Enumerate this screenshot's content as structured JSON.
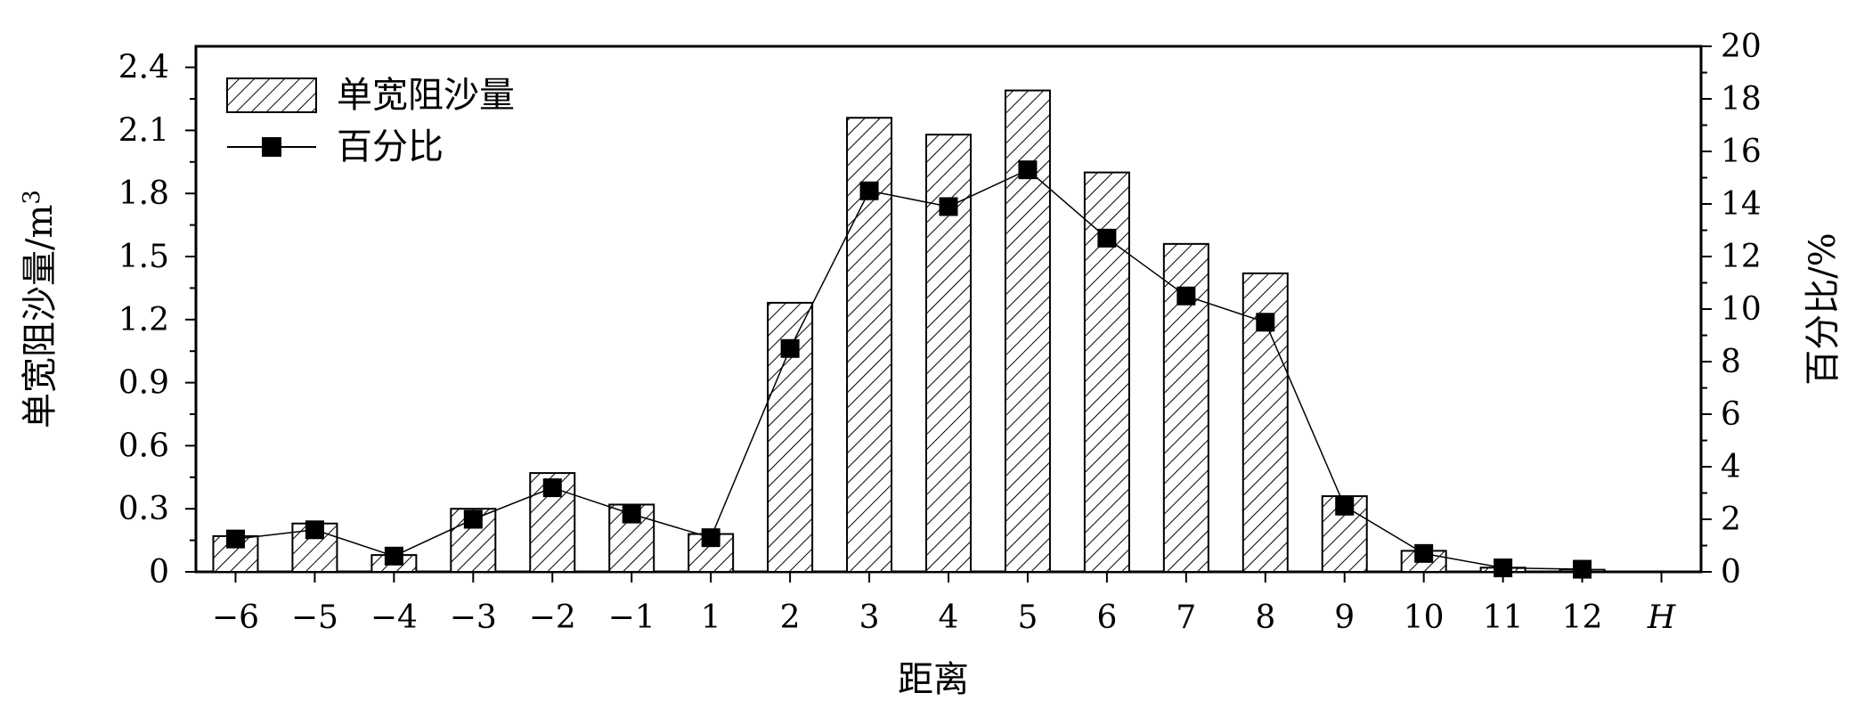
{
  "chart_data": {
    "type": "bar",
    "xlabel": "距离",
    "ylabel": "单宽阻沙量/m",
    "ylabel_sup": "3",
    "y2label": "百分比/%",
    "categories": [
      "-6",
      "-5",
      "-4",
      "-3",
      "-2",
      "-1",
      "1",
      "2",
      "3",
      "4",
      "5",
      "6",
      "7",
      "8",
      "9",
      "10",
      "11",
      "12"
    ],
    "x_tick_labels": [
      "−6",
      "−5",
      "−4",
      "−3",
      "−2",
      "−1",
      "1",
      "2",
      "3",
      "4",
      "5",
      "6",
      "7",
      "8",
      "9",
      "10",
      "11",
      "12",
      "H"
    ],
    "ylim": [
      0,
      2.5
    ],
    "yticks": [
      0,
      0.3,
      0.6,
      0.9,
      1.2,
      1.5,
      1.8,
      2.1,
      2.4
    ],
    "ytick_labels": [
      "0",
      "0.3",
      "0.6",
      "0.9",
      "1.2",
      "1.5",
      "1.8",
      "2.1",
      "2.4"
    ],
    "y2lim": [
      0,
      20
    ],
    "y2ticks": [
      0,
      2,
      4,
      6,
      8,
      10,
      12,
      14,
      16,
      18,
      20
    ],
    "y2tick_labels": [
      "0",
      "2",
      "4",
      "6",
      "8",
      "10",
      "12",
      "14",
      "16",
      "18",
      "20"
    ],
    "series": [
      {
        "name": "单宽阻沙量",
        "type": "bar",
        "axis": "left",
        "values": [
          0.17,
          0.23,
          0.08,
          0.3,
          0.47,
          0.32,
          0.18,
          1.28,
          2.16,
          2.08,
          2.29,
          1.9,
          1.56,
          1.42,
          0.36,
          0.1,
          0.02,
          0.01
        ]
      },
      {
        "name": "百分比",
        "type": "line",
        "axis": "right",
        "marker": "square",
        "values": [
          1.25,
          1.6,
          0.6,
          2.0,
          3.2,
          2.2,
          1.3,
          8.5,
          14.5,
          13.9,
          15.3,
          12.7,
          10.5,
          9.5,
          2.5,
          0.7,
          0.15,
          0.1
        ]
      }
    ],
    "legend_position": "top-left",
    "grid": false,
    "colors": {
      "bar_fill": "#ffffff",
      "bar_hatch": "#000000",
      "line": "#000000",
      "marker": "#000000"
    }
  }
}
